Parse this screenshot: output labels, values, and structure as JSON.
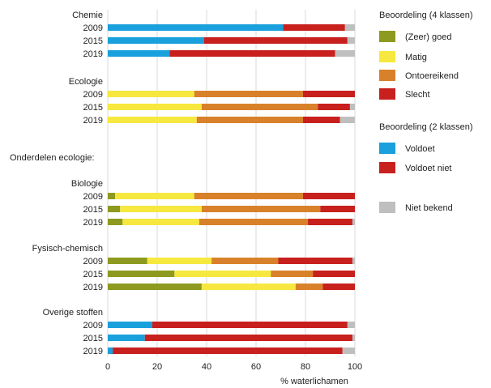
{
  "chart_data": {
    "type": "bar",
    "orientation": "horizontal",
    "stacked": true,
    "xlabel": "% waterlichamen",
    "xlim": [
      0,
      100
    ],
    "x_ticks": [
      0,
      20,
      40,
      60,
      80,
      100
    ],
    "grid": "vertical",
    "section_label": "Onderdelen ecologie:",
    "groups": [
      {
        "name": "Chemie",
        "section_after_header": false,
        "rows": [
          {
            "year": "2009",
            "values": [
              {
                "key": "voldoet",
                "value": 71
              },
              {
                "key": "voldoet_niet",
                "value": 25
              },
              {
                "key": "niet_bekend",
                "value": 4
              }
            ]
          },
          {
            "year": "2015",
            "values": [
              {
                "key": "voldoet",
                "value": 39
              },
              {
                "key": "voldoet_niet",
                "value": 58
              },
              {
                "key": "niet_bekend",
                "value": 3
              }
            ]
          },
          {
            "year": "2019",
            "values": [
              {
                "key": "voldoet",
                "value": 25
              },
              {
                "key": "voldoet_niet",
                "value": 67
              },
              {
                "key": "niet_bekend",
                "value": 8
              }
            ]
          }
        ]
      },
      {
        "name": "Ecologie",
        "rows": [
          {
            "year": "2009",
            "values": [
              {
                "key": "zeer_goed",
                "value": 0
              },
              {
                "key": "matig",
                "value": 35
              },
              {
                "key": "ontoereikend",
                "value": 44
              },
              {
                "key": "slecht",
                "value": 21
              },
              {
                "key": "niet_bekend",
                "value": 0
              }
            ]
          },
          {
            "year": "2015",
            "values": [
              {
                "key": "zeer_goed",
                "value": 0
              },
              {
                "key": "matig",
                "value": 38
              },
              {
                "key": "ontoereikend",
                "value": 47
              },
              {
                "key": "slecht",
                "value": 13
              },
              {
                "key": "niet_bekend",
                "value": 2
              }
            ]
          },
          {
            "year": "2019",
            "values": [
              {
                "key": "zeer_goed",
                "value": 0
              },
              {
                "key": "matig",
                "value": 36
              },
              {
                "key": "ontoereikend",
                "value": 43
              },
              {
                "key": "slecht",
                "value": 15
              },
              {
                "key": "niet_bekend",
                "value": 6
              }
            ]
          }
        ]
      },
      {
        "name": "Biologie",
        "rows": [
          {
            "year": "2009",
            "values": [
              {
                "key": "zeer_goed",
                "value": 3
              },
              {
                "key": "matig",
                "value": 32
              },
              {
                "key": "ontoereikend",
                "value": 44
              },
              {
                "key": "slecht",
                "value": 21
              },
              {
                "key": "niet_bekend",
                "value": 0
              }
            ]
          },
          {
            "year": "2015",
            "values": [
              {
                "key": "zeer_goed",
                "value": 5
              },
              {
                "key": "matig",
                "value": 33
              },
              {
                "key": "ontoereikend",
                "value": 48
              },
              {
                "key": "slecht",
                "value": 14
              },
              {
                "key": "niet_bekend",
                "value": 0
              }
            ]
          },
          {
            "year": "2019",
            "values": [
              {
                "key": "zeer_goed",
                "value": 6
              },
              {
                "key": "matig",
                "value": 31
              },
              {
                "key": "ontoereikend",
                "value": 44
              },
              {
                "key": "slecht",
                "value": 18
              },
              {
                "key": "niet_bekend",
                "value": 1
              }
            ]
          }
        ]
      },
      {
        "name": "Fysisch-chemisch",
        "rows": [
          {
            "year": "2009",
            "values": [
              {
                "key": "zeer_goed",
                "value": 16
              },
              {
                "key": "matig",
                "value": 26
              },
              {
                "key": "ontoereikend",
                "value": 27
              },
              {
                "key": "slecht",
                "value": 30
              },
              {
                "key": "niet_bekend",
                "value": 1
              }
            ]
          },
          {
            "year": "2015",
            "values": [
              {
                "key": "zeer_goed",
                "value": 27
              },
              {
                "key": "matig",
                "value": 39
              },
              {
                "key": "ontoereikend",
                "value": 17
              },
              {
                "key": "slecht",
                "value": 17
              },
              {
                "key": "niet_bekend",
                "value": 0
              }
            ]
          },
          {
            "year": "2019",
            "values": [
              {
                "key": "zeer_goed",
                "value": 38
              },
              {
                "key": "matig",
                "value": 38
              },
              {
                "key": "ontoereikend",
                "value": 11
              },
              {
                "key": "slecht",
                "value": 13
              },
              {
                "key": "niet_bekend",
                "value": 0
              }
            ]
          }
        ]
      },
      {
        "name": "Overige stoffen",
        "rows": [
          {
            "year": "2009",
            "values": [
              {
                "key": "voldoet",
                "value": 18
              },
              {
                "key": "voldoet_niet",
                "value": 79
              },
              {
                "key": "niet_bekend",
                "value": 3
              }
            ]
          },
          {
            "year": "2015",
            "values": [
              {
                "key": "voldoet",
                "value": 15
              },
              {
                "key": "voldoet_niet",
                "value": 84
              },
              {
                "key": "niet_bekend",
                "value": 1
              }
            ]
          },
          {
            "year": "2019",
            "values": [
              {
                "key": "voldoet",
                "value": 2
              },
              {
                "key": "voldoet_niet",
                "value": 93
              },
              {
                "key": "niet_bekend",
                "value": 5
              }
            ]
          }
        ]
      }
    ],
    "legend": {
      "placement": "right",
      "sections": [
        {
          "title": "Beoordeling (4 klassen)",
          "items": [
            {
              "key": "zeer_goed",
              "label": "(Zeer) goed"
            },
            {
              "key": "matig",
              "label": "Matig"
            },
            {
              "key": "ontoereikend",
              "label": "Ontoereikend"
            },
            {
              "key": "slecht",
              "label": "Slecht"
            }
          ]
        },
        {
          "title": "Beoordeling (2 klassen)",
          "items": [
            {
              "key": "voldoet",
              "label": "Voldoet"
            },
            {
              "key": "voldoet_niet",
              "label": "Voldoet niet"
            }
          ]
        },
        {
          "title": "",
          "items": [
            {
              "key": "niet_bekend",
              "label": "Niet bekend"
            }
          ]
        }
      ]
    },
    "colors": {
      "zeer_goed": "#8d9a1f",
      "matig": "#f7e83f",
      "ontoereikend": "#d9812a",
      "slecht": "#c8201d",
      "voldoet": "#1aa0dc",
      "voldoet_niet": "#c8201d",
      "niet_bekend": "#bfbfbf"
    }
  }
}
